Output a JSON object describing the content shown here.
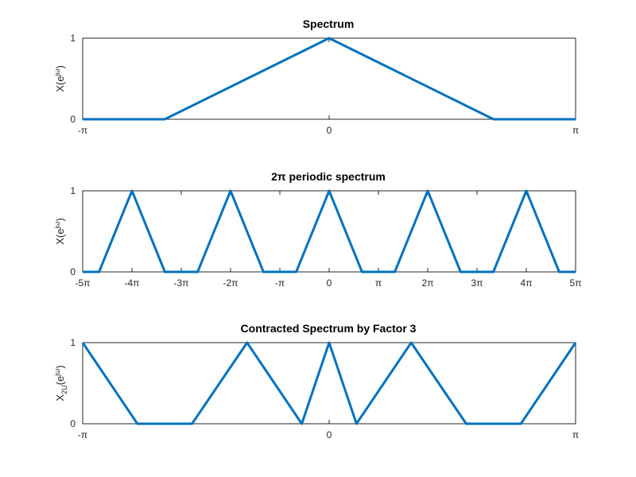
{
  "chart_data": [
    {
      "type": "line",
      "title": "Spectrum",
      "ylabel": {
        "base": "X(e",
        "sup": "jω",
        "tail": ")"
      },
      "xlim": [
        -1,
        1
      ],
      "x_unit": "π",
      "ylim": [
        0,
        1
      ],
      "xticks": [
        {
          "value": -1,
          "label": "-π"
        },
        {
          "value": 0,
          "label": "0"
        },
        {
          "value": 1,
          "label": "π"
        }
      ],
      "yticks": [
        {
          "value": 0,
          "label": "0"
        },
        {
          "value": 1,
          "label": "1"
        }
      ],
      "series": [
        {
          "x": [
            -1,
            -0.667,
            0,
            0.667,
            1
          ],
          "y": [
            0,
            0,
            1,
            0,
            0
          ]
        }
      ]
    },
    {
      "type": "line",
      "title": "2π periodic spectrum",
      "ylabel": {
        "base": "X(e",
        "sup": "jω",
        "tail": ")"
      },
      "xlim": [
        -5,
        5
      ],
      "x_unit": "π",
      "ylim": [
        0,
        1
      ],
      "xticks": [
        {
          "value": -5,
          "label": "-5π"
        },
        {
          "value": -4,
          "label": "-4π"
        },
        {
          "value": -3,
          "label": "-3π"
        },
        {
          "value": -2,
          "label": "-2π"
        },
        {
          "value": -1,
          "label": "-π"
        },
        {
          "value": 0,
          "label": "0"
        },
        {
          "value": 1,
          "label": "π"
        },
        {
          "value": 2,
          "label": "2π"
        },
        {
          "value": 3,
          "label": "3π"
        },
        {
          "value": 4,
          "label": "4π"
        },
        {
          "value": 5,
          "label": "5π"
        }
      ],
      "yticks": [
        {
          "value": 0,
          "label": "0"
        },
        {
          "value": 1,
          "label": "1"
        }
      ],
      "series": [
        {
          "x": [
            -5,
            -4.667,
            -4,
            -3.333,
            -2.667,
            -2,
            -1.333,
            -0.667,
            0,
            0.667,
            1.333,
            2,
            2.667,
            3.333,
            4,
            4.667,
            5
          ],
          "y": [
            0,
            0,
            1,
            0,
            0,
            1,
            0,
            0,
            1,
            0,
            0,
            1,
            0,
            0,
            1,
            0,
            0
          ]
        }
      ]
    },
    {
      "type": "line",
      "title": "Contracted Spectrum by Factor 3",
      "ylabel": {
        "base": "X",
        "sub": "2U",
        "mid": "(e",
        "sup": "jω",
        "tail": ")"
      },
      "xlim": [
        -1,
        1
      ],
      "x_unit": "π",
      "ylim": [
        0,
        1
      ],
      "xticks": [
        {
          "value": -1,
          "label": "-π"
        },
        {
          "value": 0,
          "label": "0"
        },
        {
          "value": 1,
          "label": "π"
        }
      ],
      "yticks": [
        {
          "value": 0,
          "label": "0"
        },
        {
          "value": 1,
          "label": "1"
        }
      ],
      "series": [
        {
          "x": [
            -1,
            -0.778,
            -0.556,
            -0.333,
            -0.111,
            0,
            0.111,
            0.333,
            0.556,
            0.778,
            1
          ],
          "y": [
            1,
            0,
            0,
            1,
            0,
            1,
            0,
            1,
            0,
            0,
            1
          ],
          "_note_skip": true
        }
      ]
    }
  ]
}
